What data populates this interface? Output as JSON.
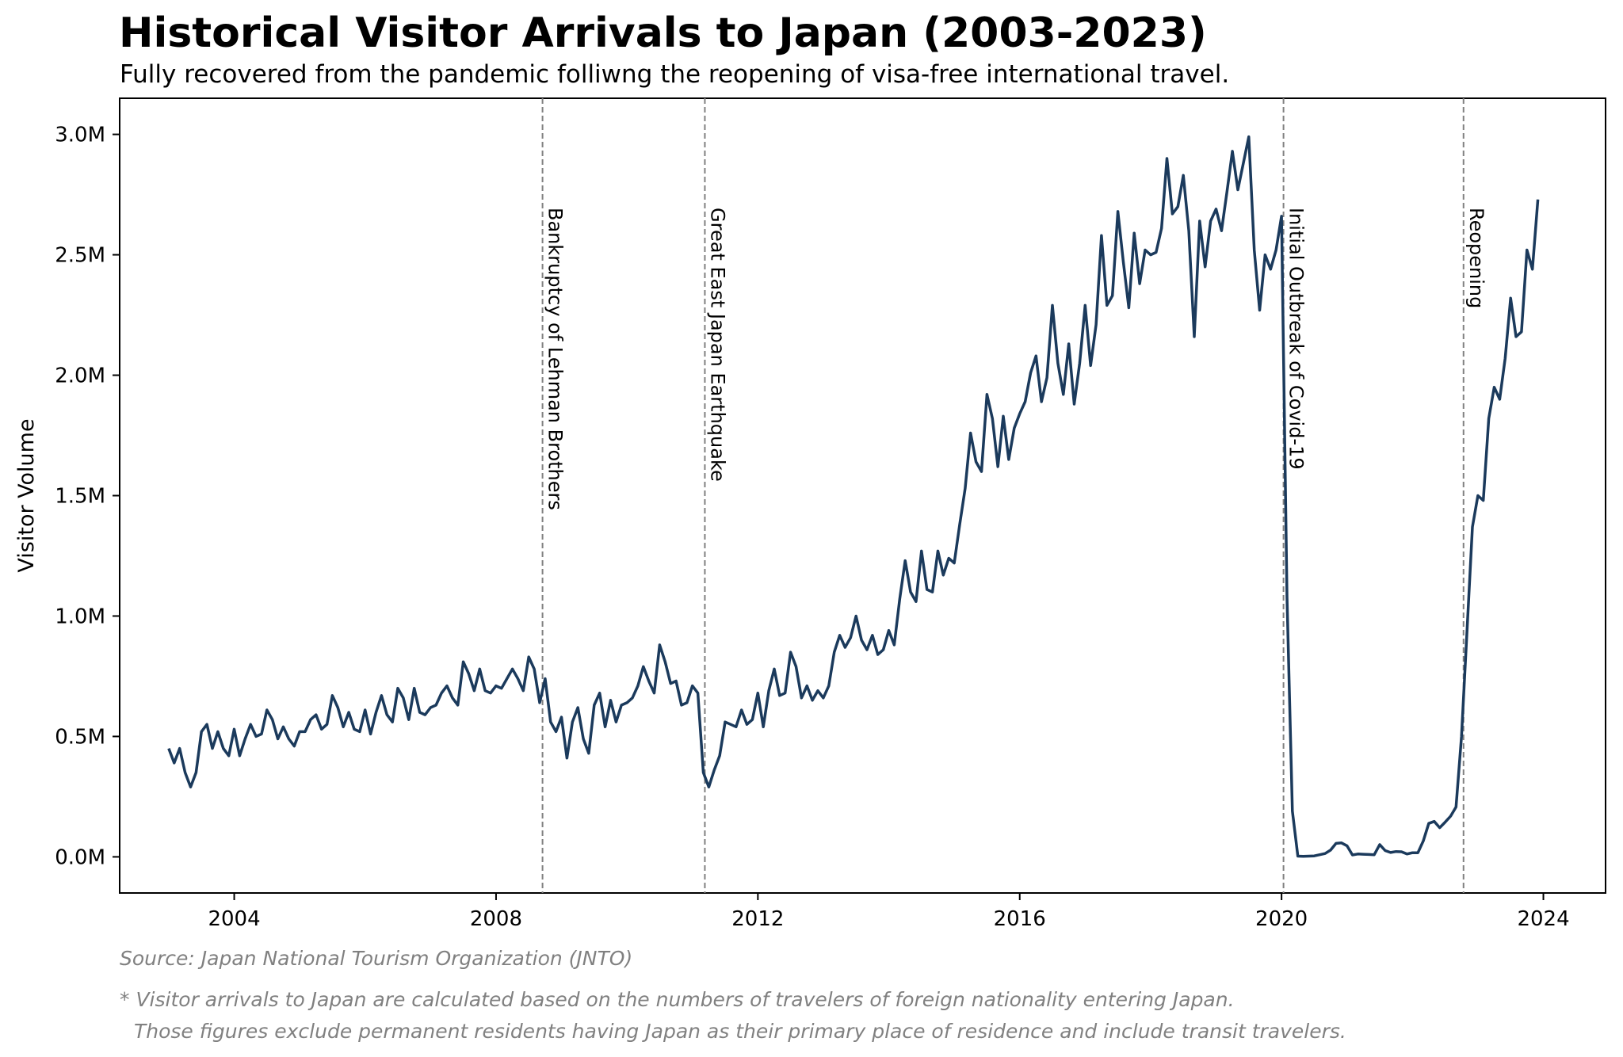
{
  "title": "Historical Visitor Arrivals to Japan (2003-2023)",
  "subtitle": "Fully recovered from the pandemic folliwng the reopening of visa-free international travel.",
  "source": "Source: Japan National Tourism Organization (JNTO)",
  "footnote_line1": "* Visitor arrivals to Japan are calculated based on the numbers of travelers of foreign nationality entering Japan.",
  "footnote_line2": "Those figures exclude permanent residents having Japan as their primary place of residence and include transit travelers.",
  "colors": {
    "line": "#1b3a5c",
    "event_line": "#808080"
  },
  "chart_data": {
    "type": "line",
    "ylabel": "Visitor Volume",
    "xlabel": "",
    "xlim": [
      2002.25,
      2024.95
    ],
    "ylim": [
      -0.15,
      3.15
    ],
    "x_ticks": [
      2004,
      2008,
      2012,
      2016,
      2020,
      2024
    ],
    "x_tick_labels": [
      "2004",
      "2008",
      "2012",
      "2016",
      "2020",
      "2024"
    ],
    "y_ticks": [
      0.0,
      0.5,
      1.0,
      1.5,
      2.0,
      2.5,
      3.0
    ],
    "y_tick_labels": [
      "0.0M",
      "0.5M",
      "1.0M",
      "1.5M",
      "2.0M",
      "2.5M",
      "3.0M"
    ],
    "y_unit": "millions of visitors",
    "grid": false,
    "x_start": 2003.0,
    "x_step": 0.08333,
    "series": [
      {
        "values": [
          0.45,
          0.39,
          0.45,
          0.35,
          0.29,
          0.35,
          0.52,
          0.55,
          0.45,
          0.52,
          0.45,
          0.42,
          0.53,
          0.42,
          0.49,
          0.55,
          0.5,
          0.51,
          0.61,
          0.57,
          0.49,
          0.54,
          0.49,
          0.46,
          0.52,
          0.52,
          0.57,
          0.59,
          0.53,
          0.55,
          0.67,
          0.62,
          0.54,
          0.6,
          0.53,
          0.52,
          0.61,
          0.51,
          0.6,
          0.67,
          0.59,
          0.56,
          0.7,
          0.66,
          0.57,
          0.7,
          0.6,
          0.59,
          0.62,
          0.63,
          0.68,
          0.71,
          0.66,
          0.63,
          0.81,
          0.76,
          0.69,
          0.78,
          0.69,
          0.68,
          0.71,
          0.7,
          0.74,
          0.78,
          0.74,
          0.69,
          0.83,
          0.78,
          0.64,
          0.74,
          0.56,
          0.52,
          0.58,
          0.41,
          0.56,
          0.62,
          0.49,
          0.43,
          0.63,
          0.68,
          0.54,
          0.65,
          0.56,
          0.63,
          0.64,
          0.66,
          0.71,
          0.79,
          0.73,
          0.68,
          0.88,
          0.81,
          0.72,
          0.73,
          0.63,
          0.64,
          0.71,
          0.68,
          0.35,
          0.29,
          0.36,
          0.42,
          0.56,
          0.55,
          0.54,
          0.61,
          0.55,
          0.57,
          0.68,
          0.54,
          0.69,
          0.78,
          0.67,
          0.68,
          0.85,
          0.79,
          0.66,
          0.71,
          0.65,
          0.69,
          0.66,
          0.71,
          0.85,
          0.92,
          0.87,
          0.91,
          1.0,
          0.9,
          0.86,
          0.92,
          0.84,
          0.86,
          0.94,
          0.88,
          1.07,
          1.23,
          1.1,
          1.06,
          1.27,
          1.11,
          1.1,
          1.27,
          1.17,
          1.24,
          1.22,
          1.38,
          1.53,
          1.76,
          1.64,
          1.6,
          1.92,
          1.82,
          1.62,
          1.83,
          1.65,
          1.78,
          1.84,
          1.89,
          2.01,
          2.08,
          1.89,
          1.99,
          2.29,
          2.05,
          1.92,
          2.13,
          1.88,
          2.05,
          2.29,
          2.04,
          2.21,
          2.58,
          2.29,
          2.33,
          2.68,
          2.47,
          2.28,
          2.59,
          2.38,
          2.52,
          2.5,
          2.51,
          2.61,
          2.9,
          2.67,
          2.7,
          2.83,
          2.6,
          2.16,
          2.64,
          2.45,
          2.64,
          2.69,
          2.6,
          2.76,
          2.93,
          2.77,
          2.88,
          2.99,
          2.52,
          2.27,
          2.5,
          2.44,
          2.52,
          2.66,
          1.08,
          0.19,
          0.003,
          0.002,
          0.003,
          0.004,
          0.009,
          0.014,
          0.028,
          0.056,
          0.058,
          0.046,
          0.008,
          0.012,
          0.011,
          0.01,
          0.009,
          0.051,
          0.026,
          0.018,
          0.022,
          0.021,
          0.012,
          0.017,
          0.017,
          0.066,
          0.139,
          0.147,
          0.121,
          0.144,
          0.169,
          0.207,
          0.499,
          0.934,
          1.37,
          1.5,
          1.48,
          1.82,
          1.95,
          1.9,
          2.07,
          2.32,
          2.16,
          2.18,
          2.52,
          2.44,
          2.73
        ]
      }
    ],
    "events": [
      {
        "x": 2008.71,
        "label": "Bankruptcy of Lehman Brothers"
      },
      {
        "x": 2011.19,
        "label": "Great East Japan Earthquake"
      },
      {
        "x": 2020.03,
        "label": "Initial Outbreak of Covid-19"
      },
      {
        "x": 2022.78,
        "label": "Reopening"
      }
    ]
  }
}
